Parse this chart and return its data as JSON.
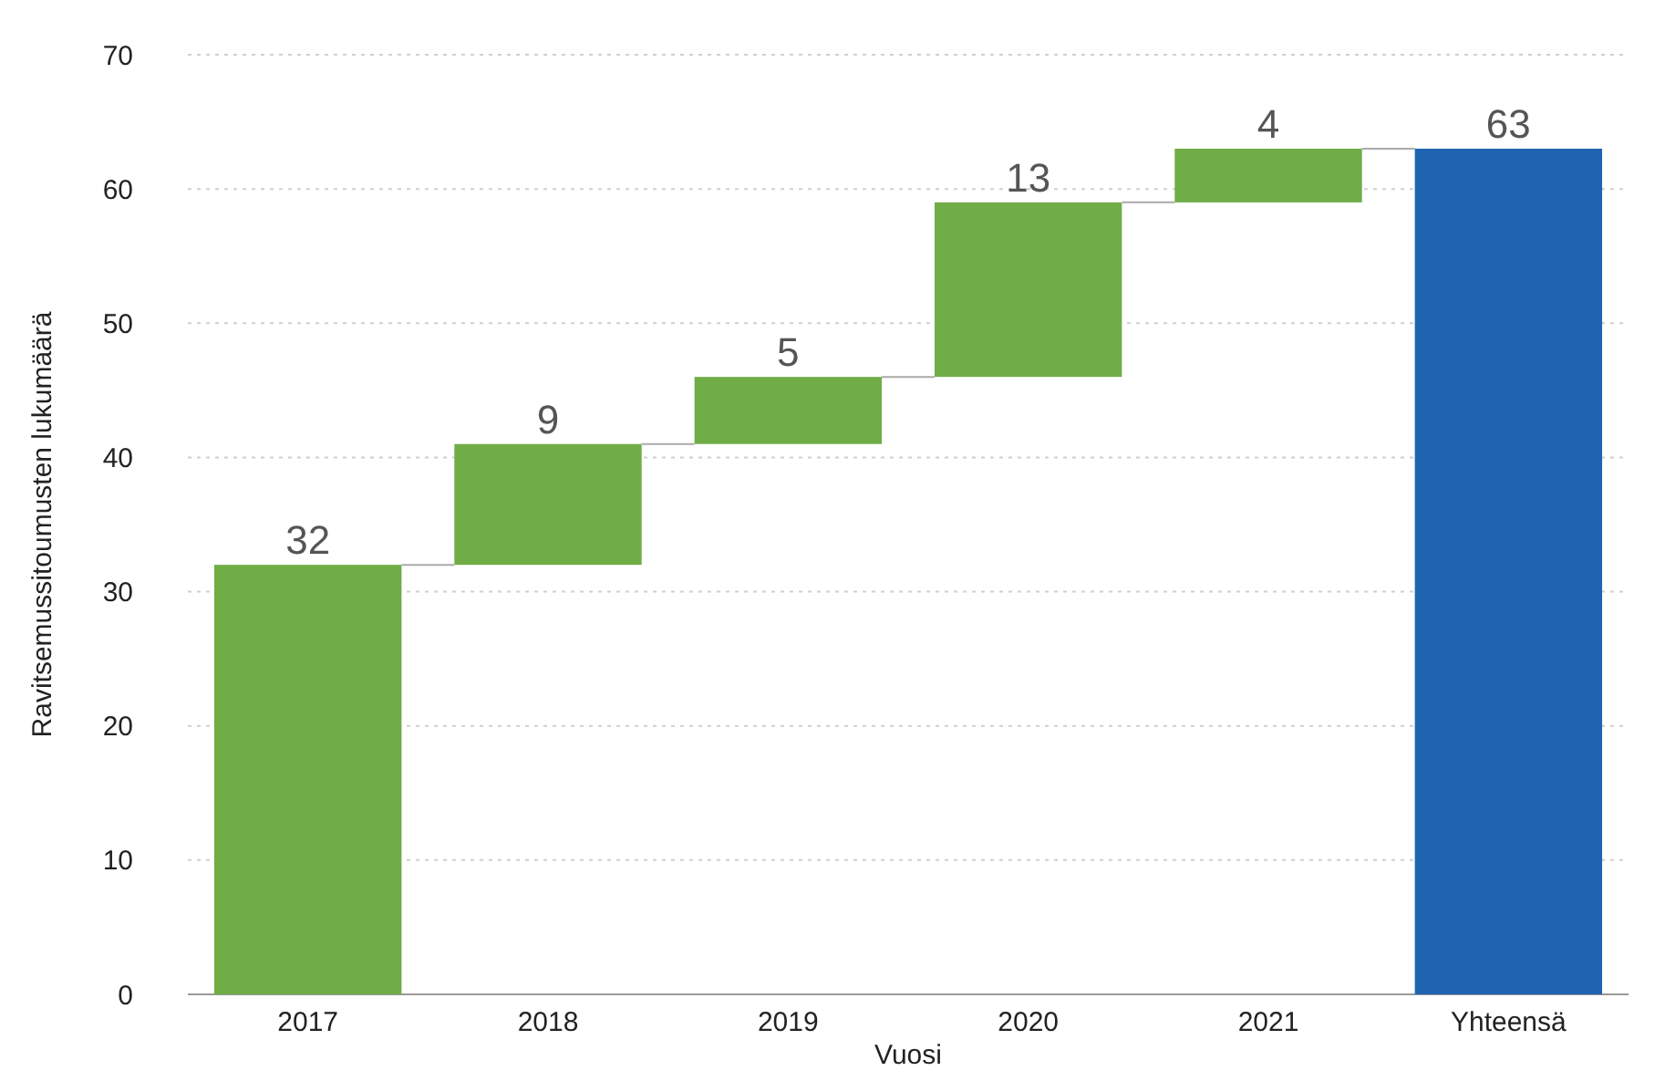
{
  "chart_data": {
    "type": "bar",
    "xlabel": "Vuosi",
    "ylabel": "Ravitsemussitoumusten lukumäärä",
    "categories": [
      "2017",
      "2018",
      "2019",
      "2020",
      "2021",
      "Yhteensä"
    ],
    "values": [
      32,
      9,
      5,
      13,
      4,
      63
    ],
    "base": [
      0,
      32,
      41,
      46,
      59,
      0
    ],
    "colors": [
      "#70ad47",
      "#70ad47",
      "#70ad47",
      "#70ad47",
      "#70ad47",
      "#1f64b0"
    ],
    "ylim": [
      0,
      70
    ],
    "yticks": [
      0,
      10,
      20,
      30,
      40,
      50,
      60,
      70
    ],
    "grid": "y",
    "data_labels": true
  }
}
